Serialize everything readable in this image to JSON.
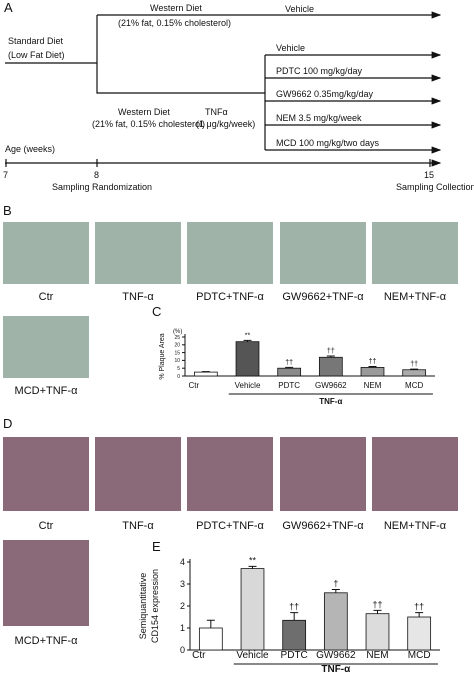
{
  "panel_a": {
    "letter": "A",
    "start": [
      "Standard Diet",
      "(Low Fat Diet)"
    ],
    "top_diet": [
      "Western Diet",
      "(21% fat, 0.15% cholesterol)"
    ],
    "top_arm": "Vehicle",
    "bottom_diet": [
      "Western Diet",
      "(21% fat, 0.15% cholesterol)"
    ],
    "injection": [
      "TNFα",
      "(1 μg/kg/week)"
    ],
    "arms": [
      "Vehicle",
      "PDTC 100 mg/kg/day",
      "GW9662 0.35mg/kg/day",
      "NEM 3.5 mg/kg/week",
      "MCD 100 mg/kg/two days"
    ],
    "timeline": {
      "title": "Age (weeks)",
      "ticks": [
        "7",
        "8",
        "15"
      ],
      "events": [
        "Sampling Randomization",
        "Sampling Collection"
      ]
    }
  },
  "panel_b": {
    "letter": "B",
    "captions": [
      "Ctr",
      "TNF-α",
      "PDTC+TNF-α",
      "GW9662+TNF-α",
      "NEM+TNF-α",
      "MCD+TNF-α"
    ]
  },
  "panel_d": {
    "letter": "D",
    "captions": [
      "Ctr",
      "TNF-α",
      "PDTC+TNF-α",
      "GW9662+TNF-α",
      "NEM+TNF-α",
      "MCD+TNF-α"
    ]
  },
  "chart_data": [
    {
      "type": "bar",
      "panel_label": "C",
      "ylabel": [
        "% Plaque Area"
      ],
      "yunit": "(%)",
      "categories": [
        "Ctr",
        "Vehicle",
        "PDTC",
        "GW9662",
        "NEM",
        "MCD"
      ],
      "values": [
        2.5,
        22,
        5,
        12,
        5.5,
        4
      ],
      "errors": [
        0.3,
        0.8,
        0.5,
        0.8,
        0.6,
        0.4
      ],
      "markers": [
        null,
        "**",
        "††",
        "††",
        "††",
        "††"
      ],
      "colors": [
        "#ffffff",
        "#555555",
        "#8a8a8a",
        "#777777",
        "#9a9a9a",
        "#aaaaaa"
      ],
      "group_label": "TNF-α",
      "ylim": [
        0,
        25
      ],
      "yticks": [
        0,
        5,
        10,
        15,
        20,
        25
      ]
    },
    {
      "type": "bar",
      "panel_label": "E",
      "ylabel": [
        "Semiquantitative",
        "CD154 expression"
      ],
      "categories": [
        "Ctr",
        "Vehicle",
        "PDTC",
        "GW9662",
        "NEM",
        "MCD"
      ],
      "values": [
        1.0,
        3.7,
        1.35,
        2.6,
        1.65,
        1.5
      ],
      "errors": [
        0.35,
        0.1,
        0.35,
        0.15,
        0.15,
        0.2
      ],
      "markers": [
        null,
        "**",
        "††",
        "†",
        "††",
        "††"
      ],
      "colors": [
        "#ffffff",
        "#d8d8d8",
        "#6e6e6e",
        "#b5b5b5",
        "#dcdcdc",
        "#e6e6e6"
      ],
      "group_label": "TNF-α",
      "ylim": [
        0,
        4
      ],
      "yticks": [
        0,
        1,
        2,
        3,
        4
      ]
    }
  ]
}
